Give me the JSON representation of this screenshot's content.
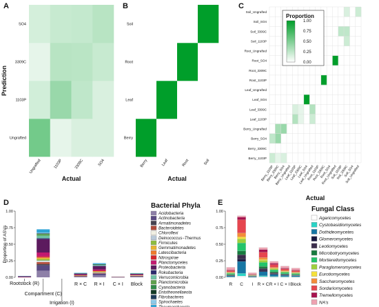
{
  "panel_letters": [
    "A",
    "B",
    "C",
    "D",
    "E"
  ],
  "colors": {
    "heat_low": "#ffffff",
    "heat_high": "#009e2a",
    "axis": "#333333",
    "grid": "#dddddd"
  },
  "chart_data": [
    {
      "id": "A",
      "type": "heatmap",
      "xlabel": "Actual",
      "ylabel": "Prediction",
      "x_categories": [
        "Ungrafted",
        "1103P",
        "3309C",
        "SO4"
      ],
      "y_categories": [
        "Ungrafted",
        "1103P",
        "3309C",
        "SO4"
      ],
      "values": [
        [
          0.55,
          0.1,
          0.15,
          0.15
        ],
        [
          0.18,
          0.4,
          0.25,
          0.15
        ],
        [
          0.1,
          0.28,
          0.27,
          0.22
        ],
        [
          0.17,
          0.22,
          0.23,
          0.28
        ]
      ]
    },
    {
      "id": "B",
      "type": "heatmap",
      "xlabel": "Actual",
      "ylabel": "",
      "x_categories": [
        "Berry",
        "Leaf",
        "Root",
        "Soil"
      ],
      "y_categories": [
        "Berry",
        "Leaf",
        "Root",
        "Soil"
      ],
      "values": [
        [
          1,
          0,
          0,
          0
        ],
        [
          0,
          1,
          0,
          0
        ],
        [
          0,
          0,
          1,
          0
        ],
        [
          0,
          0,
          0,
          1
        ]
      ]
    },
    {
      "id": "C",
      "type": "heatmap",
      "xlabel": "Actual",
      "ylabel": "",
      "legend_title": "Proportion",
      "legend_ticks": [
        "1.00",
        "0.75",
        "0.50",
        "0.25",
        "0.00"
      ],
      "x_categories": [
        "Berry_1103P",
        "Berry_3309C",
        "Berry_SO4",
        "Berry_Ungrafted",
        "Leaf_1103P",
        "Leaf_3309C",
        "Leaf_SO4",
        "Leaf_Ungrafted",
        "Root_1103P",
        "Root_3309C",
        "Root_SO4",
        "Root_Ungrafted",
        "Soil_1103P",
        "Soil_3309C",
        "Soil_SO4",
        "Soil_Ungrafted"
      ],
      "y_categories": [
        "Berry_1103P",
        "Berry_3309C",
        "Berry_SO4",
        "Berry_Ungrafted",
        "Leaf_1103P",
        "Leaf_3309C",
        "Leaf_SO4",
        "Leaf_Ungrafted",
        "Root_1103P",
        "Root_3309C",
        "Root_SO4",
        "Root_Ungrafted",
        "Soil_1103P",
        "Soil_3309C",
        "Soil_SO4",
        "Soil_Ungrafted"
      ],
      "values": [
        [
          0.2,
          0.1,
          0.15,
          0.0,
          0,
          0,
          0,
          0,
          0,
          0,
          0,
          0,
          0,
          0,
          0,
          0
        ],
        [
          0,
          0,
          0,
          0,
          0,
          0,
          0,
          0,
          0,
          0,
          0,
          0,
          0,
          0,
          0,
          0
        ],
        [
          0.25,
          0.4,
          0,
          0,
          0,
          0,
          0,
          0,
          0,
          0,
          0,
          0,
          0,
          0,
          0,
          0
        ],
        [
          0,
          0.35,
          0.4,
          0,
          0,
          0,
          0,
          0,
          0,
          0,
          0,
          0,
          0,
          0,
          0,
          0
        ],
        [
          0,
          0,
          0,
          0,
          0.3,
          0.1,
          0,
          0.2,
          0,
          0,
          0,
          0,
          0,
          0,
          0,
          0
        ],
        [
          0,
          0,
          0,
          0,
          0.15,
          0.1,
          0,
          0.3,
          0,
          0,
          0,
          0,
          0,
          0,
          0,
          0
        ],
        [
          0,
          0,
          0,
          0,
          0,
          0,
          1.0,
          0,
          0,
          0,
          0,
          0,
          0,
          0,
          0,
          0
        ],
        [
          0,
          0,
          0,
          0,
          0,
          0,
          0,
          0,
          0,
          0,
          0,
          0,
          0,
          0,
          0,
          0
        ],
        [
          0,
          0,
          0,
          0,
          0,
          0,
          0,
          0,
          0,
          1.0,
          0,
          0,
          0,
          0,
          0,
          0
        ],
        [
          0,
          0,
          0,
          0,
          0,
          0,
          0,
          0,
          0,
          0,
          0,
          0,
          0,
          0,
          0,
          0
        ],
        [
          0,
          0,
          0,
          0,
          0,
          0,
          0,
          0,
          0,
          0,
          0,
          1.0,
          0,
          0,
          0,
          0
        ],
        [
          0,
          0,
          0,
          0,
          0,
          0,
          0,
          0,
          0,
          0,
          0,
          0,
          0,
          0,
          0,
          0
        ],
        [
          0,
          0,
          0,
          0,
          0,
          0,
          0,
          0,
          0,
          0,
          0,
          0,
          0,
          0.2,
          0,
          0
        ],
        [
          0,
          0,
          0,
          0,
          0,
          0,
          0,
          0,
          0,
          0,
          0,
          0,
          0.25,
          0.25,
          0,
          0
        ],
        [
          0,
          0,
          0,
          0,
          0,
          0,
          0,
          0,
          0,
          0,
          0,
          0,
          0,
          0,
          0,
          0
        ],
        [
          0,
          0,
          0,
          0,
          0,
          0,
          0,
          0,
          0,
          0,
          0,
          0,
          0,
          0.15,
          0,
          0.2
        ]
      ]
    },
    {
      "id": "D",
      "type": "bar",
      "stacked": true,
      "ylabel": "Proportion of ASVs",
      "ylim": [
        0,
        1.0
      ],
      "yticks": [
        "0.00",
        "0.25",
        "0.50",
        "0.75",
        "1.00"
      ],
      "categories": [
        "Rootstock (R)",
        "Compartment (C)",
        "Irrigation (I)",
        "R × C",
        "R × I",
        "C × I",
        "Block"
      ],
      "legend_title": "Bacterial Phyla",
      "series": [
        {
          "name": "Acidobacteria",
          "color": "#8e80a8",
          "values": [
            0.002,
            0.1,
            0,
            0.008,
            0.03,
            0,
            0.008
          ]
        },
        {
          "name": "Actinobacteria",
          "color": "#5a4a82",
          "values": [
            0.002,
            0.08,
            0,
            0.008,
            0.025,
            0.002,
            0.008
          ]
        },
        {
          "name": "Armatimonadetes",
          "color": "#454250",
          "values": [
            0,
            0.02,
            0,
            0,
            0.004,
            0,
            0.002
          ]
        },
        {
          "name": "Bacteroidetes",
          "color": "#b04a3a",
          "values": [
            0.003,
            0.03,
            0,
            0.006,
            0.01,
            0.002,
            0.006
          ]
        },
        {
          "name": "Chloroflexi",
          "color": "#f0eee2",
          "values": [
            0,
            0.01,
            0,
            0.002,
            0.004,
            0,
            0.002
          ]
        },
        {
          "name": "Deinococcus−Thermus",
          "color": "#b9c9d8",
          "values": [
            0,
            0.015,
            0,
            0,
            0.004,
            0,
            0
          ]
        },
        {
          "name": "Firmicutes",
          "color": "#8dbd3e",
          "values": [
            0,
            0.02,
            0,
            0.002,
            0.006,
            0,
            0.004
          ]
        },
        {
          "name": "Gemmatimonadetes",
          "color": "#e7b431",
          "values": [
            0,
            0.02,
            0,
            0.004,
            0.008,
            0,
            0.002
          ]
        },
        {
          "name": "Latescibacteria",
          "color": "#ef7a2c",
          "values": [
            0,
            0.005,
            0,
            0,
            0.002,
            0,
            0
          ]
        },
        {
          "name": "Nitrospirae",
          "color": "#d6252b",
          "values": [
            0,
            0.015,
            0,
            0.002,
            0.006,
            0,
            0.002
          ]
        },
        {
          "name": "Planctomycetes",
          "color": "#c2186f",
          "values": [
            0.003,
            0.06,
            0,
            0.008,
            0.02,
            0.002,
            0.006
          ]
        },
        {
          "name": "Proteobacteria",
          "color": "#5c1a5e",
          "values": [
            0.008,
            0.2,
            0,
            0.015,
            0.05,
            0.003,
            0.012
          ]
        },
        {
          "name": "Rokubacteria",
          "color": "#2d2a6e",
          "values": [
            0,
            0.015,
            0,
            0.002,
            0.006,
            0,
            0.002
          ]
        },
        {
          "name": "Verrucomicrobia",
          "color": "#6fc1a5",
          "values": [
            0.002,
            0.04,
            0,
            0.004,
            0.012,
            0.001,
            0.004
          ]
        },
        {
          "name": "Planctomicrobia",
          "color": "#5ea14d",
          "values": [
            0,
            0.02,
            0,
            0.002,
            0.006,
            0,
            0.002
          ]
        },
        {
          "name": "Cyanobacteria",
          "color": "#2f8a48",
          "values": [
            0,
            0.005,
            0,
            0,
            0.002,
            0,
            0
          ]
        },
        {
          "name": "Entotheonellaeota",
          "color": "#123a24",
          "values": [
            0,
            0.005,
            0,
            0,
            0.002,
            0,
            0
          ]
        },
        {
          "name": "Fibrobacteres",
          "color": "#1d3c5a",
          "values": [
            0,
            0.005,
            0,
            0,
            0.001,
            0,
            0
          ]
        },
        {
          "name": "Spirochaetes",
          "color": "#8cc9e8",
          "values": [
            0,
            0.01,
            0,
            0.002,
            0.004,
            0,
            0
          ]
        },
        {
          "name": "Thaumarchaeota",
          "color": "#2fa4d6",
          "values": [
            0.001,
            0.05,
            0,
            0.004,
            0.012,
            0,
            0.004
          ]
        }
      ]
    },
    {
      "id": "E",
      "type": "bar",
      "stacked": true,
      "ylabel": "",
      "ylim": [
        0,
        1.0
      ],
      "yticks": [
        "0.00",
        "0.25",
        "0.50",
        "0.75",
        "1.00"
      ],
      "categories": [
        "R",
        "C",
        "I",
        "R × C",
        "R × I",
        "C × I",
        "Block"
      ],
      "legend_title": "Fungal Class",
      "series": [
        {
          "name": "Agaricomycetes",
          "color": "#ffffff",
          "values": [
            0.003,
            0.02,
            0.002,
            0.01,
            0.006,
            0.005,
            0.004
          ]
        },
        {
          "name": "Cystobasidiomycetes",
          "color": "#2ad4c6",
          "values": [
            0.004,
            0.04,
            0.002,
            0.015,
            0.008,
            0.006,
            0.005
          ]
        },
        {
          "name": "Dothideomycetes",
          "color": "#1776a4",
          "values": [
            0.015,
            0.18,
            0.01,
            0.06,
            0.03,
            0.02,
            0.015
          ]
        },
        {
          "name": "Glomeromycetes",
          "color": "#191740",
          "values": [
            0.005,
            0.04,
            0.002,
            0.02,
            0.01,
            0.006,
            0.004
          ]
        },
        {
          "name": "Leotiomycetes",
          "color": "#3b2d4c",
          "values": [
            0.008,
            0.06,
            0.003,
            0.03,
            0.015,
            0.008,
            0.006
          ]
        },
        {
          "name": "Microbotryomycetes",
          "color": "#197a3f",
          "values": [
            0.008,
            0.06,
            0.003,
            0.03,
            0.015,
            0.01,
            0.008
          ]
        },
        {
          "name": "Mortierellomycetes",
          "color": "#23c46a",
          "values": [
            0.015,
            0.12,
            0.005,
            0.06,
            0.03,
            0.02,
            0.015
          ]
        },
        {
          "name": "Paraglomeromycetes",
          "color": "#9ed03c",
          "values": [
            0.01,
            0.06,
            0.004,
            0.03,
            0.016,
            0.012,
            0.01
          ]
        },
        {
          "name": "Eurotiomycetes",
          "color": "#f5e13a",
          "values": [
            0.005,
            0.03,
            0.002,
            0.015,
            0.008,
            0.006,
            0.005
          ]
        },
        {
          "name": "Saccharomycetes",
          "color": "#f48c3a",
          "values": [
            0.008,
            0.06,
            0.003,
            0.03,
            0.015,
            0.012,
            0.01
          ]
        },
        {
          "name": "Sordariomycetes",
          "color": "#e6454e",
          "values": [
            0.02,
            0.2,
            0.01,
            0.08,
            0.04,
            0.025,
            0.02
          ]
        },
        {
          "name": "Tremellomycetes",
          "color": "#a8134f",
          "values": [
            0.01,
            0.04,
            0.003,
            0.04,
            0.02,
            0.01,
            0.008
          ]
        },
        {
          "name": "NA's",
          "color": "#eea2b1",
          "values": [
            0.04,
            0.02,
            0.02,
            0.03,
            0.028,
            0.03,
            0.03
          ]
        }
      ]
    }
  ]
}
